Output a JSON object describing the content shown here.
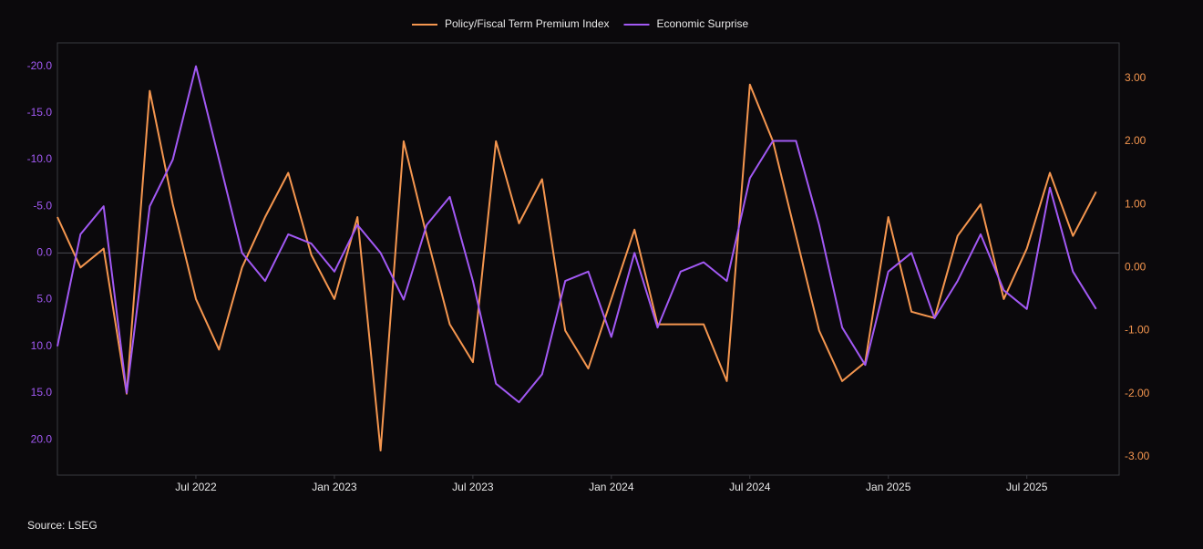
{
  "chart_data": {
    "type": "line",
    "source": "Source: LSEG",
    "x": [
      "2022-01",
      "2022-02",
      "2022-03",
      "2022-04",
      "2022-05",
      "2022-06",
      "2022-07",
      "2022-08",
      "2022-09",
      "2022-10",
      "2022-11",
      "2022-12",
      "2023-01",
      "2023-02",
      "2023-03",
      "2023-04",
      "2023-05",
      "2023-06",
      "2023-07",
      "2023-08",
      "2023-09",
      "2023-10",
      "2023-11",
      "2023-12",
      "2024-01",
      "2024-02",
      "2024-03",
      "2024-04",
      "2024-05",
      "2024-06",
      "2024-07",
      "2024-08",
      "2024-09",
      "2024-10",
      "2024-11",
      "2024-12",
      "2025-01",
      "2025-02",
      "2025-03",
      "2025-04",
      "2025-05",
      "2025-06",
      "2025-07",
      "2025-08",
      "2025-09",
      "2025-10"
    ],
    "xlim": [
      "2022-01",
      "2025-11"
    ],
    "xticks": [
      {
        "value": "2022-07",
        "label": "Jul 2022"
      },
      {
        "value": "2023-01",
        "label": "Jan 2023"
      },
      {
        "value": "2023-07",
        "label": "Jul 2023"
      },
      {
        "value": "2024-01",
        "label": "Jan 2024"
      },
      {
        "value": "2024-07",
        "label": "Jul 2024"
      },
      {
        "value": "2025-01",
        "label": "Jan 2025"
      },
      {
        "value": "2025-07",
        "label": "Jul 2025"
      }
    ],
    "ylim": [
      23.8,
      -22.5
    ],
    "yticks": [
      {
        "value": -20,
        "label": "-20.0"
      },
      {
        "value": -15,
        "label": "-15.0"
      },
      {
        "value": -10,
        "label": "-10.0"
      },
      {
        "value": -5,
        "label": "-5.0"
      },
      {
        "value": 0,
        "label": "0.0"
      },
      {
        "value": 5,
        "label": "5.0"
      },
      {
        "value": 10,
        "label": "10.0"
      },
      {
        "value": 15,
        "label": "15.0"
      },
      {
        "value": 20,
        "label": "20.0"
      }
    ],
    "y2lim": [
      -3.29,
      3.56
    ],
    "y2ticks": [
      {
        "value": 3,
        "label": "3.00"
      },
      {
        "value": 2,
        "label": "2.00"
      },
      {
        "value": 1,
        "label": "1.00"
      },
      {
        "value": 0,
        "label": "0.00"
      },
      {
        "value": -1,
        "label": "-1.00"
      },
      {
        "value": -2,
        "label": "-2.00"
      },
      {
        "value": -3,
        "label": "-3.00"
      }
    ],
    "series": [
      {
        "name": "Policy/Fiscal Term Premium Index",
        "color": "#f5964f",
        "axis": "y2",
        "values": [
          0.8,
          0.0,
          0.3,
          -2.0,
          2.8,
          1.0,
          -0.5,
          -1.3,
          0.0,
          0.8,
          1.5,
          0.2,
          -0.5,
          0.8,
          -2.9,
          2.0,
          0.5,
          -0.9,
          -1.5,
          2.0,
          0.7,
          1.4,
          -1.0,
          -1.6,
          -0.5,
          0.6,
          -0.9,
          -0.9,
          -0.9,
          -1.8,
          2.9,
          2.0,
          0.5,
          -1.0,
          -1.8,
          -1.5,
          0.8,
          -0.7,
          -0.8,
          0.5,
          1.0,
          -0.5,
          0.3,
          1.5,
          0.5,
          1.2
        ]
      },
      {
        "name": "Economic Surprise",
        "color": "#a259f4",
        "axis": "y",
        "values": [
          10,
          -2,
          -5,
          15,
          -5,
          -10,
          -20,
          -10,
          0,
          3,
          -2,
          -1,
          2,
          -3,
          0,
          5,
          -3,
          -6,
          3,
          14,
          16,
          13,
          3,
          2,
          9,
          0,
          8,
          2,
          1,
          3,
          -8,
          -12,
          -12,
          -3,
          8,
          12,
          2,
          0,
          7,
          3,
          -2,
          4,
          6,
          -7,
          2,
          6
        ]
      }
    ]
  }
}
